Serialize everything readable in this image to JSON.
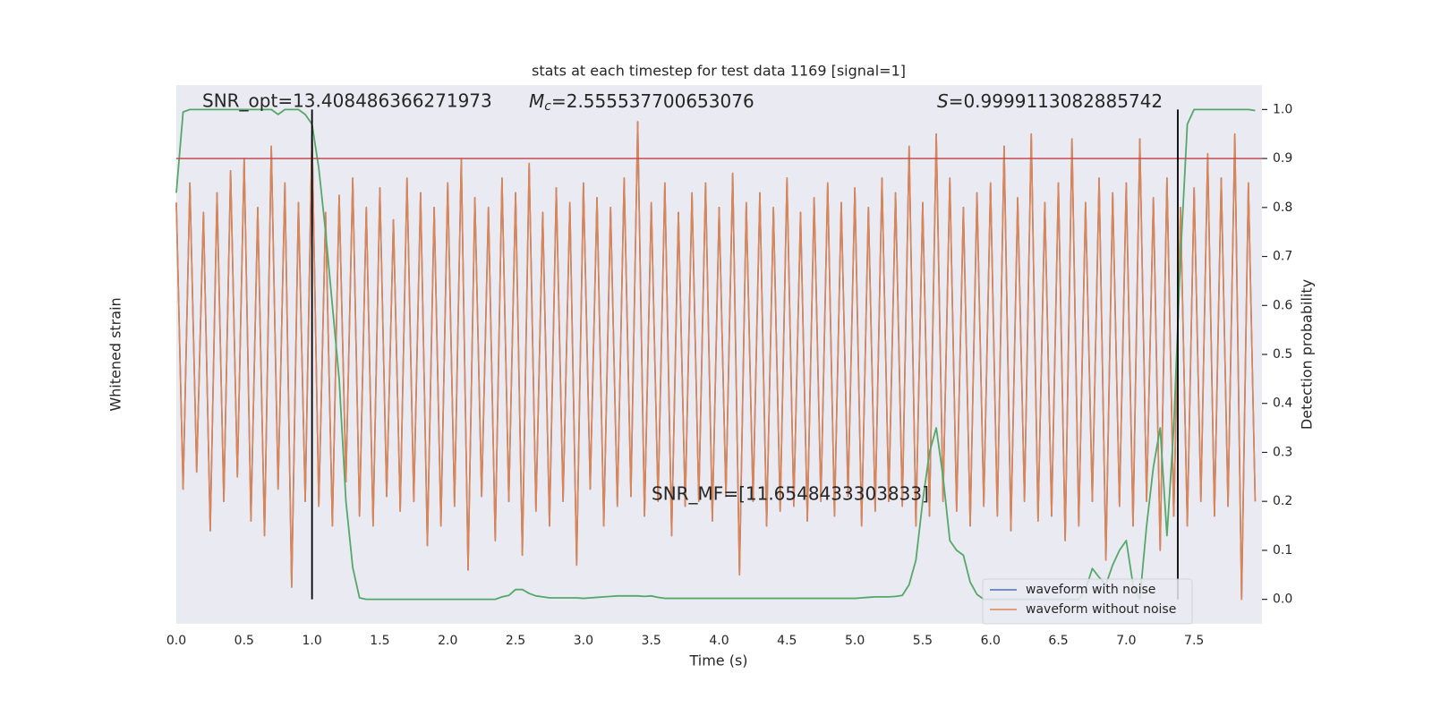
{
  "chart_data": {
    "type": "line",
    "title": "stats at each timestep for test data 1169 [signal=1]",
    "xlabel": "Time (s)",
    "ylabel": "Whitened strain",
    "y2label": "Detection probability",
    "annotations": {
      "snr_opt": "SNR_opt=13.408486366271973",
      "mc_symbol": "M",
      "mc_sub": "c",
      "mc_rest": "=2.555537700653076",
      "s_symbol": "S",
      "s_rest": "=0.9999113082885742",
      "snr_mf": "SNR_MF=[11.6548433303833]"
    },
    "xlim": [
      0,
      8
    ],
    "xticks": [
      {
        "value": 0,
        "label": "0.0"
      },
      {
        "value": 0.5,
        "label": "0.5"
      },
      {
        "value": 1,
        "label": "1.0"
      },
      {
        "value": 1.5,
        "label": "1.5"
      },
      {
        "value": 2,
        "label": "2.0"
      },
      {
        "value": 2.5,
        "label": "2.5"
      },
      {
        "value": 3,
        "label": "3.0"
      },
      {
        "value": 3.5,
        "label": "3.5"
      },
      {
        "value": 4,
        "label": "4.0"
      },
      {
        "value": 4.5,
        "label": "4.5"
      },
      {
        "value": 5,
        "label": "5.0"
      },
      {
        "value": 5.5,
        "label": "5.5"
      },
      {
        "value": 6,
        "label": "6.0"
      },
      {
        "value": 6.5,
        "label": "6.5"
      },
      {
        "value": 7,
        "label": "7.0"
      },
      {
        "value": 7.5,
        "label": "7.5"
      }
    ],
    "ylim": [
      -1.1,
      1.1
    ],
    "y2lim": [
      -0.05,
      1.05
    ],
    "y2ticks": [
      {
        "value": 0,
        "label": "0.0"
      },
      {
        "value": 0.1,
        "label": "0.1"
      },
      {
        "value": 0.2,
        "label": "0.2"
      },
      {
        "value": 0.3,
        "label": "0.3"
      },
      {
        "value": 0.4,
        "label": "0.4"
      },
      {
        "value": 0.5,
        "label": "0.5"
      },
      {
        "value": 0.6,
        "label": "0.6"
      },
      {
        "value": 0.7,
        "label": "0.7"
      },
      {
        "value": 0.8,
        "label": "0.8"
      },
      {
        "value": 0.9,
        "label": "0.9"
      },
      {
        "value": 1,
        "label": "1.0"
      }
    ],
    "grid": true,
    "legend": "lower right",
    "threshold": {
      "value": 0.9,
      "color": "#c44e52"
    },
    "vlines": {
      "values": [
        1.0,
        7.38
      ],
      "color": "#000000"
    },
    "x": [
      0,
      0.05,
      0.1,
      0.15,
      0.2,
      0.25,
      0.3,
      0.35,
      0.4,
      0.45,
      0.5,
      0.55,
      0.6,
      0.65,
      0.7,
      0.75,
      0.8,
      0.85,
      0.9,
      0.95,
      1,
      1.05,
      1.1,
      1.15,
      1.2,
      1.25,
      1.3,
      1.35,
      1.4,
      1.45,
      1.5,
      1.55,
      1.6,
      1.65,
      1.7,
      1.75,
      1.8,
      1.85,
      1.9,
      1.95,
      2,
      2.05,
      2.1,
      2.15,
      2.2,
      2.25,
      2.3,
      2.35,
      2.4,
      2.45,
      2.5,
      2.55,
      2.6,
      2.65,
      2.7,
      2.75,
      2.8,
      2.85,
      2.9,
      2.95,
      3,
      3.05,
      3.1,
      3.15,
      3.2,
      3.25,
      3.3,
      3.35,
      3.4,
      3.45,
      3.5,
      3.55,
      3.6,
      3.65,
      3.7,
      3.75,
      3.8,
      3.85,
      3.9,
      3.95,
      4,
      4.05,
      4.1,
      4.15,
      4.2,
      4.25,
      4.3,
      4.35,
      4.4,
      4.45,
      4.5,
      4.55,
      4.6,
      4.65,
      4.7,
      4.75,
      4.8,
      4.85,
      4.9,
      4.95,
      5,
      5.05,
      5.1,
      5.15,
      5.2,
      5.25,
      5.3,
      5.35,
      5.4,
      5.45,
      5.5,
      5.55,
      5.6,
      5.65,
      5.7,
      5.75,
      5.8,
      5.85,
      5.9,
      5.95,
      6,
      6.05,
      6.1,
      6.15,
      6.2,
      6.25,
      6.3,
      6.35,
      6.4,
      6.45,
      6.5,
      6.55,
      6.6,
      6.65,
      6.7,
      6.75,
      6.8,
      6.85,
      6.9,
      6.95,
      7,
      7.05,
      7.1,
      7.15,
      7.2,
      7.25,
      7.3,
      7.35,
      7.4,
      7.45,
      7.5,
      7.55,
      7.6,
      7.65,
      7.7,
      7.75,
      7.8,
      7.85,
      7.9,
      7.95
    ],
    "series": [
      {
        "name": "waveform with noise",
        "color": "#4c72b0",
        "axis": "y",
        "values": [
          0.62,
          -0.55,
          0.7,
          -0.48,
          0.58,
          -0.72,
          0.66,
          -0.6,
          0.75,
          -0.5,
          0.8,
          -0.68,
          0.6,
          -0.74,
          0.85,
          -0.55,
          0.7,
          -0.95,
          0.62,
          -0.6,
          0.9,
          -0.62,
          0.58,
          -0.7,
          0.65,
          -0.52,
          0.72,
          -0.66,
          0.6,
          -0.7,
          0.68,
          -0.58,
          0.55,
          -0.64,
          0.72,
          -0.6,
          0.66,
          -0.78,
          0.6,
          -0.7,
          0.7,
          -0.62,
          0.8,
          -0.88,
          0.64,
          -0.58,
          0.6,
          -0.76,
          0.72,
          -0.6,
          0.66,
          -0.82,
          0.78,
          -0.64,
          0.58,
          -0.7,
          0.68,
          -0.6,
          0.62,
          -0.86,
          0.7,
          -0.55,
          0.64,
          -0.7,
          0.6,
          -0.62,
          0.72,
          -0.58,
          0.95,
          -0.66,
          0.62,
          -0.6,
          0.7,
          -0.74,
          0.58,
          -0.62,
          0.66,
          -0.6,
          0.7,
          -0.68,
          0.6,
          -0.58,
          0.74,
          -0.9,
          0.62,
          -0.6,
          0.66,
          -0.7,
          0.6,
          -0.64,
          0.72,
          -0.62,
          0.58,
          -0.68,
          0.64,
          -0.6,
          0.7,
          -0.66,
          0.62,
          -0.58,
          0.68,
          -0.7,
          0.6,
          -0.64,
          0.72,
          -0.6,
          0.66,
          -0.62,
          0.85,
          -0.7,
          0.62,
          -0.66,
          0.9,
          -0.6,
          0.72,
          -0.64,
          0.6,
          -0.7,
          0.66,
          -0.62,
          0.7,
          -0.66,
          0.85,
          -0.72,
          0.64,
          -0.6,
          0.9,
          -0.68,
          0.62,
          -0.66,
          0.7,
          -0.76,
          0.88,
          -0.7,
          0.62,
          -0.6,
          0.72,
          -0.84,
          0.66,
          -0.62,
          0.7,
          -0.7,
          0.88,
          -0.6,
          0.64,
          -0.8,
          0.72,
          -0.66,
          0.6,
          -0.7,
          0.68,
          -0.6,
          0.82,
          -0.66,
          0.72,
          -0.62,
          0.9,
          -1.0,
          0.7,
          -0.6
        ]
      },
      {
        "name": "waveform without noise",
        "color": "#dd8452",
        "axis": "y",
        "values": [
          0.62,
          -0.55,
          0.7,
          -0.48,
          0.58,
          -0.72,
          0.66,
          -0.6,
          0.75,
          -0.5,
          0.8,
          -0.68,
          0.6,
          -0.74,
          0.85,
          -0.55,
          0.7,
          -0.95,
          0.62,
          -0.6,
          0.9,
          -0.62,
          0.58,
          -0.7,
          0.65,
          -0.52,
          0.72,
          -0.66,
          0.6,
          -0.7,
          0.68,
          -0.58,
          0.55,
          -0.64,
          0.72,
          -0.6,
          0.66,
          -0.78,
          0.6,
          -0.7,
          0.7,
          -0.62,
          0.8,
          -0.88,
          0.64,
          -0.58,
          0.6,
          -0.76,
          0.72,
          -0.6,
          0.66,
          -0.82,
          0.78,
          -0.64,
          0.58,
          -0.7,
          0.68,
          -0.6,
          0.62,
          -0.86,
          0.7,
          -0.55,
          0.64,
          -0.7,
          0.6,
          -0.62,
          0.72,
          -0.58,
          0.95,
          -0.66,
          0.62,
          -0.6,
          0.7,
          -0.74,
          0.58,
          -0.62,
          0.66,
          -0.6,
          0.7,
          -0.68,
          0.6,
          -0.58,
          0.74,
          -0.9,
          0.62,
          -0.6,
          0.66,
          -0.7,
          0.6,
          -0.64,
          0.72,
          -0.62,
          0.58,
          -0.68,
          0.64,
          -0.6,
          0.7,
          -0.66,
          0.62,
          -0.58,
          0.68,
          -0.7,
          0.6,
          -0.64,
          0.72,
          -0.6,
          0.66,
          -0.62,
          0.85,
          -0.7,
          0.62,
          -0.66,
          0.9,
          -0.6,
          0.72,
          -0.64,
          0.6,
          -0.7,
          0.66,
          -0.62,
          0.7,
          -0.66,
          0.85,
          -0.72,
          0.64,
          -0.6,
          0.9,
          -0.68,
          0.62,
          -0.66,
          0.7,
          -0.76,
          0.88,
          -0.7,
          0.62,
          -0.6,
          0.72,
          -0.84,
          0.66,
          -0.62,
          0.7,
          -0.7,
          0.88,
          -0.6,
          0.64,
          -0.8,
          0.72,
          -0.66,
          0.6,
          -0.7,
          0.68,
          -0.6,
          0.82,
          -0.66,
          0.72,
          -0.62,
          0.9,
          -1.0,
          0.7,
          -0.6
        ]
      },
      {
        "color": "#55a868",
        "axis": "y2",
        "values": [
          0.83,
          0.995,
          1,
          1,
          1,
          1,
          1,
          1,
          1,
          1,
          1,
          1,
          1,
          1,
          1,
          0.99,
          1,
          1,
          1,
          0.99,
          0.97,
          0.88,
          0.75,
          0.6,
          0.45,
          0.2,
          0.065,
          0.003,
          0,
          0,
          0,
          0,
          0,
          0,
          0,
          0,
          0,
          0,
          0,
          0,
          0,
          0,
          0,
          0,
          0,
          0,
          0,
          0,
          0.005,
          0.008,
          0.02,
          0.02,
          0.012,
          0.007,
          0.005,
          0.003,
          0.003,
          0.003,
          0.003,
          0.003,
          0.002,
          0.003,
          0.004,
          0.005,
          0.006,
          0.007,
          0.007,
          0.007,
          0.007,
          0.006,
          0.007,
          0.004,
          0.002,
          0.002,
          0.002,
          0.002,
          0.002,
          0.002,
          0.002,
          0.002,
          0.002,
          0.002,
          0.002,
          0.002,
          0.002,
          0.002,
          0.002,
          0.002,
          0.002,
          0.002,
          0.002,
          0.002,
          0.002,
          0.002,
          0.002,
          0.002,
          0.002,
          0.002,
          0.002,
          0.002,
          0.002,
          0.003,
          0.004,
          0.005,
          0.005,
          0.005,
          0.006,
          0.008,
          0.03,
          0.08,
          0.2,
          0.3,
          0.35,
          0.25,
          0.12,
          0.1,
          0.09,
          0.035,
          0.01,
          0,
          0,
          0,
          0,
          0,
          0,
          0,
          0,
          0,
          0,
          0,
          0,
          0,
          0,
          0,
          0.02,
          0.063,
          0.045,
          0.03,
          0.07,
          0.1,
          0.12,
          0.03,
          0,
          0.15,
          0.27,
          0.35,
          0.13,
          0.35,
          0.7,
          0.97,
          1,
          1,
          1,
          1,
          1,
          1,
          1,
          1,
          1,
          0.998
        ]
      }
    ]
  }
}
